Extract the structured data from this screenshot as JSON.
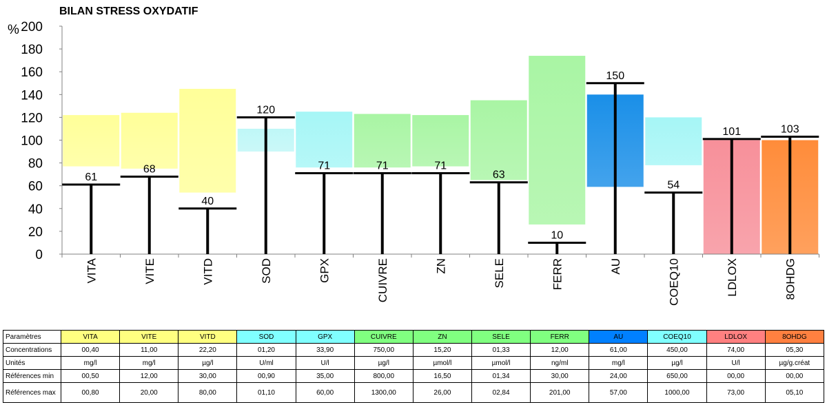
{
  "chart_data": {
    "type": "bar",
    "title": "BILAN STRESS OXYDATIF",
    "ylabel": "%",
    "ylim": [
      0,
      200
    ],
    "yticks": [
      0,
      20,
      40,
      60,
      80,
      100,
      120,
      140,
      160,
      180,
      200
    ],
    "categories": [
      "VITA",
      "VITE",
      "VITD",
      "SOD",
      "GPX",
      "CUIVRE",
      "ZN",
      "SELE",
      "FERR",
      "AU",
      "COEQ10",
      "LDLOX",
      "8OHDG"
    ],
    "reference_ranges": [
      {
        "category": "VITA",
        "low": 77,
        "high": 122,
        "color": "#ffff99"
      },
      {
        "category": "VITE",
        "low": 75,
        "high": 124,
        "color": "#ffff99"
      },
      {
        "category": "VITD",
        "low": 54,
        "high": 145,
        "color": "#ffff99"
      },
      {
        "category": "SOD",
        "low": 90,
        "high": 110,
        "color": "#bff7f7"
      },
      {
        "category": "GPX",
        "low": 76,
        "high": 125,
        "color": "#a6f6f6"
      },
      {
        "category": "CUIVRE",
        "low": 76,
        "high": 123,
        "color": "#a9f5a4"
      },
      {
        "category": "ZN",
        "low": 77,
        "high": 122,
        "color": "#a9f5a4"
      },
      {
        "category": "SELE",
        "low": 65,
        "high": 135,
        "color": "#a9f5a4"
      },
      {
        "category": "FERR",
        "low": 26,
        "high": 174,
        "color": "#a9f5a4"
      },
      {
        "category": "AU",
        "low": 59,
        "high": 140,
        "color": "#1a8fe8"
      },
      {
        "category": "COEQ10",
        "low": 78,
        "high": 120,
        "color": "#a6f6f6"
      },
      {
        "category": "LDLOX",
        "low": 0,
        "high": 100,
        "color": "#f7909a"
      },
      {
        "category": "8OHDG",
        "low": 0,
        "high": 100,
        "color": "#ff8c3a"
      }
    ],
    "values": [
      61,
      68,
      40,
      120,
      71,
      71,
      71,
      63,
      10,
      150,
      54,
      101,
      103
    ],
    "data_labels": [
      "61",
      "68",
      "40",
      "120",
      "71",
      "71",
      "71",
      "63",
      "10",
      "150",
      "54",
      "101",
      "103"
    ],
    "grid": false,
    "legend": "none"
  },
  "table": {
    "headers": [
      "Paramètres",
      "VITA",
      "VITE",
      "VITD",
      "SOD",
      "GPX",
      "CUIVRE",
      "ZN",
      "SELE",
      "FERR",
      "AU",
      "COEQ10",
      "LDLOX",
      "8OHDG"
    ],
    "header_colors": [
      "#ffffff",
      "#ffff80",
      "#ffff80",
      "#ffff80",
      "#80ffff",
      "#80ffff",
      "#80ff80",
      "#80ff80",
      "#80ff80",
      "#80ff80",
      "#0080ff",
      "#80ffff",
      "#ff8080",
      "#ff8040"
    ],
    "rows": [
      {
        "label": "Concentrations",
        "values": [
          "00,40",
          "11,00",
          "22,20",
          "01,20",
          "33,90",
          "750,00",
          "15,20",
          "01,33",
          "12,00",
          "61,00",
          "450,00",
          "74,00",
          "05,30"
        ]
      },
      {
        "label": "Unités",
        "values": [
          "mg/l",
          "mg/l",
          "µg/l",
          "U/ml",
          "U/l",
          "µg/l",
          "µmol/l",
          "µmol/l",
          "ng/ml",
          "mg/l",
          "µg/l",
          "U/l",
          "µg/g.créat"
        ]
      },
      {
        "label": "Références min",
        "values": [
          "00,50",
          "12,00",
          "30,00",
          "00,90",
          "35,00",
          "800,00",
          "16,50",
          "01,34",
          "30,00",
          "24,00",
          "650,00",
          "00,00",
          "00,00"
        ]
      },
      {
        "label": "Références max",
        "values": [
          "00,80",
          "20,00",
          "80,00",
          "01,10",
          "60,00",
          "1300,00",
          "26,00",
          "02,84",
          "201,00",
          "57,00",
          "1000,00",
          "73,00",
          "05,10"
        ]
      }
    ]
  }
}
